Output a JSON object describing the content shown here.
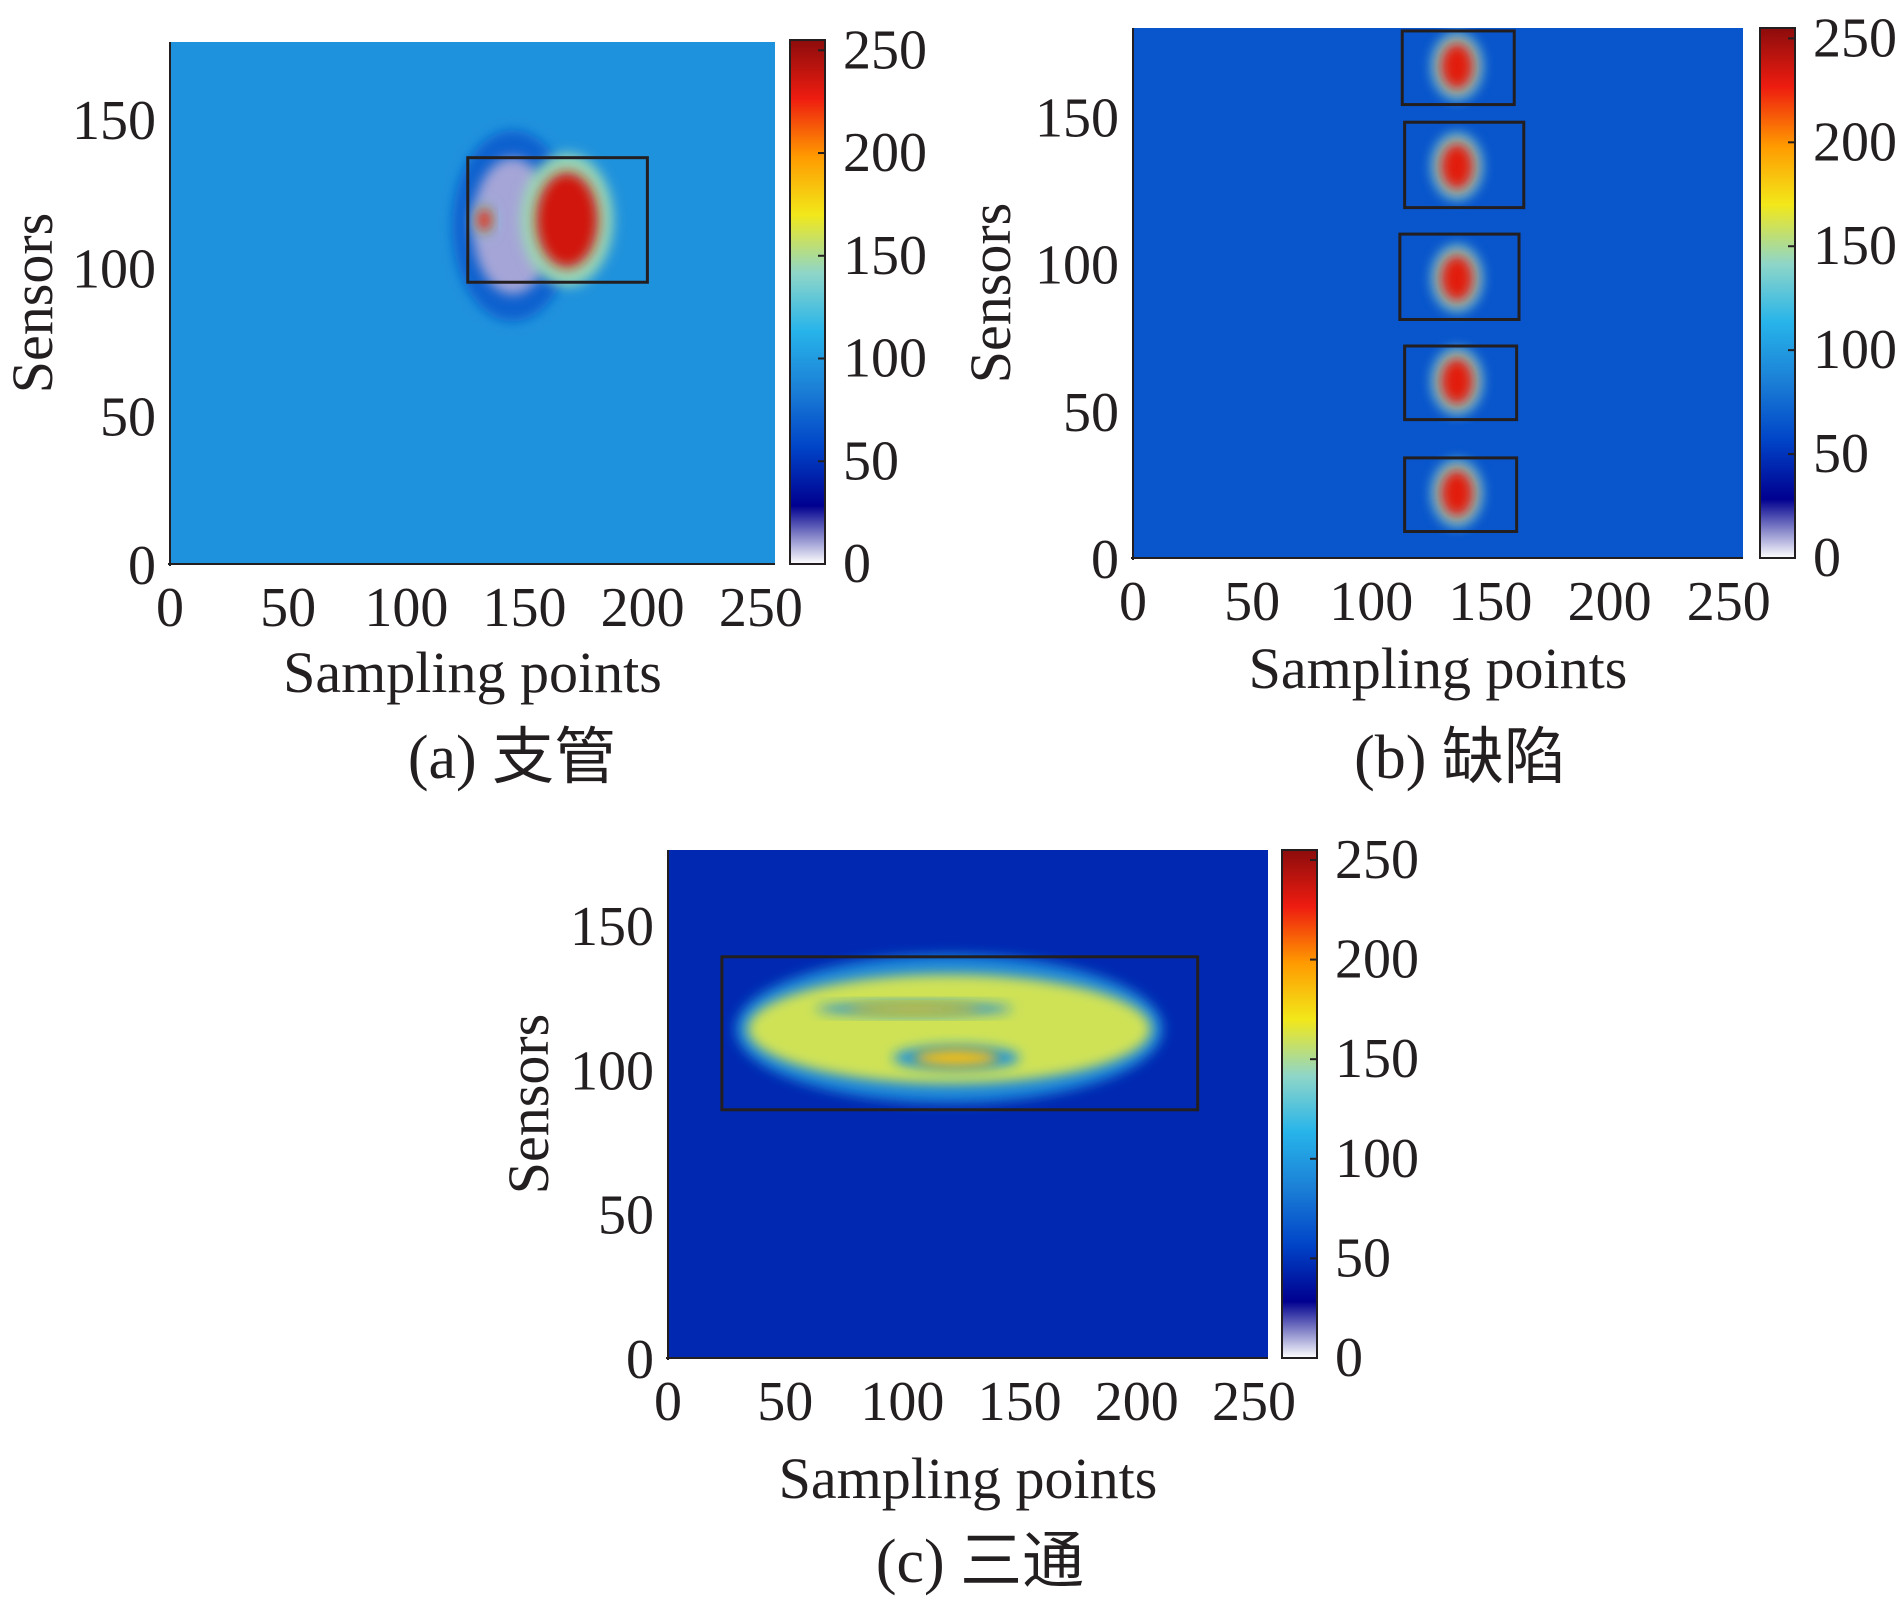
{
  "figure": {
    "colormap": [
      "#ffffff",
      "#00008f",
      "#0044c8",
      "#1b7fd6",
      "#27b4ea",
      "#8fd6c8",
      "#f2e81a",
      "#ff9a00",
      "#ee1c10",
      "#8c0c0c"
    ],
    "box_color": "#231f20"
  },
  "chart_data": [
    {
      "type": "heatmap",
      "panel": "a",
      "caption": "(a) 支管",
      "xlabel": "Sampling points",
      "ylabel": "Sensors",
      "xlim": [
        0,
        256
      ],
      "ylim": [
        0,
        176
      ],
      "xticks": [
        0,
        50,
        100,
        150,
        200,
        250
      ],
      "yticks": [
        0,
        50,
        100,
        150
      ],
      "colorbar": {
        "range": [
          0,
          255
        ],
        "ticks": [
          0,
          50,
          100,
          150,
          200,
          250
        ]
      },
      "background_level": 95,
      "highlight_boxes": [
        {
          "x": [
            126,
            202
          ],
          "y": [
            95,
            137
          ]
        }
      ],
      "features": [
        {
          "kind": "low",
          "x": 145,
          "y": 114,
          "rx": 17,
          "ry": 23,
          "value": 10
        },
        {
          "kind": "high",
          "x": 168,
          "y": 116,
          "rx": 13,
          "ry": 16,
          "value": 235
        },
        {
          "kind": "high",
          "x": 133,
          "y": 116,
          "rx": 3,
          "ry": 4,
          "value": 225
        }
      ]
    },
    {
      "type": "heatmap",
      "panel": "b",
      "caption": "(b) 缺陷",
      "xlabel": "Sampling points",
      "ylabel": "Sensors",
      "xlim": [
        0,
        256
      ],
      "ylim": [
        0,
        180
      ],
      "xticks": [
        0,
        50,
        100,
        150,
        200,
        250
      ],
      "yticks": [
        0,
        50,
        100,
        150
      ],
      "colorbar": {
        "range": [
          0,
          255
        ],
        "ticks": [
          0,
          50,
          100,
          150,
          200,
          250
        ]
      },
      "background_level": 65,
      "highlight_boxes": [
        {
          "x": [
            113,
            160
          ],
          "y": [
            154,
            179
          ]
        },
        {
          "x": [
            114,
            164
          ],
          "y": [
            119,
            148
          ]
        },
        {
          "x": [
            112,
            162
          ],
          "y": [
            81,
            110
          ]
        },
        {
          "x": [
            114,
            161
          ],
          "y": [
            47,
            72
          ]
        },
        {
          "x": [
            114,
            161
          ],
          "y": [
            9,
            34
          ]
        }
      ],
      "features": [
        {
          "kind": "high",
          "x": 136,
          "y": 167,
          "rx": 7,
          "ry": 8,
          "value": 230
        },
        {
          "kind": "high",
          "x": 136,
          "y": 133,
          "rx": 7,
          "ry": 8,
          "value": 230
        },
        {
          "kind": "high",
          "x": 136,
          "y": 95,
          "rx": 7,
          "ry": 8,
          "value": 230
        },
        {
          "kind": "high",
          "x": 136,
          "y": 60,
          "rx": 7,
          "ry": 8,
          "value": 230
        },
        {
          "kind": "high",
          "x": 136,
          "y": 22,
          "rx": 7,
          "ry": 8,
          "value": 230
        }
      ]
    },
    {
      "type": "heatmap",
      "panel": "c",
      "caption": "(c) 三通",
      "xlabel": "Sampling points",
      "ylabel": "Sensors",
      "xlim": [
        0,
        256
      ],
      "ylim": [
        0,
        176
      ],
      "xticks": [
        0,
        50,
        100,
        150,
        200,
        250
      ],
      "yticks": [
        0,
        50,
        100,
        150
      ],
      "colorbar": {
        "range": [
          0,
          255
        ],
        "ticks": [
          0,
          50,
          100,
          150,
          200,
          250
        ]
      },
      "background_level": 45,
      "highlight_boxes": [
        {
          "x": [
            23,
            226
          ],
          "y": [
            86,
            139
          ]
        }
      ],
      "features": [
        {
          "kind": "plateau",
          "x": 120,
          "y": 114,
          "rx": 86,
          "ry": 19,
          "value": 160
        },
        {
          "kind": "high",
          "x": 123,
          "y": 104,
          "rx": 18,
          "ry": 3,
          "value": 185
        },
        {
          "kind": "high",
          "x": 105,
          "y": 121,
          "rx": 28,
          "ry": 1.5,
          "value": 180
        }
      ]
    }
  ]
}
